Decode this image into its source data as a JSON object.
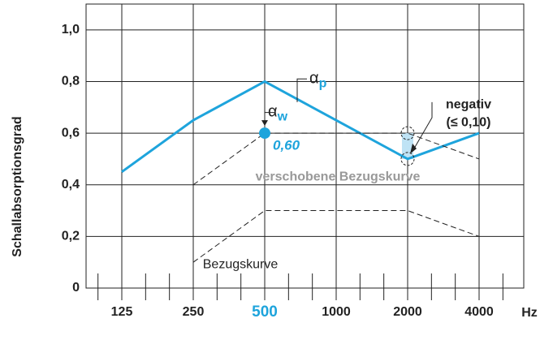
{
  "chart_data": {
    "type": "line",
    "y_label": "Schallabsorptionsgrad",
    "x_label": "Hz",
    "categories": [
      "125",
      "250",
      "500",
      "1000",
      "2000",
      "4000"
    ],
    "ylim": [
      0,
      1.1
    ],
    "yticks": [
      0,
      {
        "value": 0.2,
        "label": "0,2"
      },
      {
        "value": 0.4,
        "label": "0,4"
      },
      {
        "value": 0.6,
        "label": "0,6"
      },
      {
        "value": 0.8,
        "label": "0,8"
      },
      {
        "value": 1.0,
        "label": "1,0"
      }
    ],
    "grid": true,
    "series": [
      {
        "label": {
          "symbol": "α",
          "sub": "p"
        },
        "color": "#1ea4dc",
        "style": "solid",
        "values": [
          0.45,
          0.65,
          0.8,
          0.65,
          0.5,
          0.6
        ]
      },
      {
        "name": "verschobene Bezugskurve",
        "color": "#222222",
        "style": "dashed",
        "values": [
          null,
          0.4,
          0.6,
          0.6,
          0.6,
          0.5
        ]
      },
      {
        "name": "Bezugskurve",
        "color": "#222222",
        "style": "dashed",
        "values": [
          null,
          0.1,
          0.3,
          0.3,
          0.3,
          0.2
        ]
      }
    ],
    "alpha_w": {
      "symbol": "α",
      "sub": "w",
      "x": "500",
      "value": 0.6,
      "value_label": "0,60",
      "color": "#1ea4dc"
    },
    "deviation": {
      "x": "2000",
      "label": "negativ",
      "sublabel": "(≤ 0,10)",
      "color": "#bfe3f5"
    }
  }
}
